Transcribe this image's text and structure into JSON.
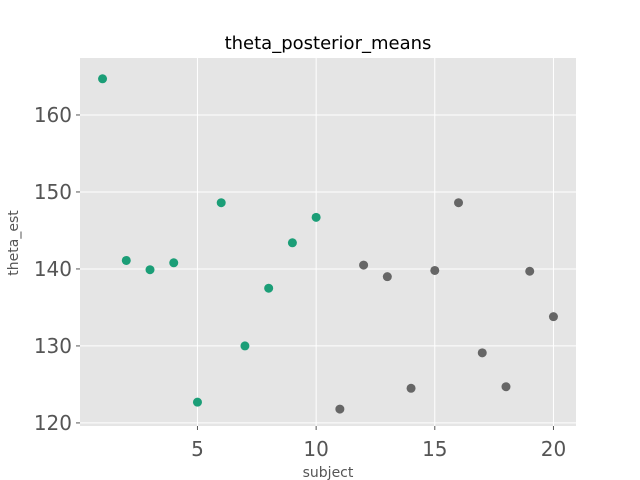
{
  "chart_data": {
    "type": "scatter",
    "title": "theta_posterior_means",
    "xlabel": "subject",
    "ylabel": "theta_est",
    "xlim": [
      0.05,
      20.95
    ],
    "ylim": [
      119.6,
      167.4
    ],
    "xticks": [
      5,
      10,
      15,
      20
    ],
    "yticks": [
      120,
      130,
      140,
      150,
      160
    ],
    "grid": true,
    "background_color": "#e5e5e5",
    "grid_color": "#ffffff",
    "series": [
      {
        "color": "#1b9e77",
        "x": [
          1,
          2,
          3,
          4,
          5,
          6,
          7,
          8,
          9,
          10
        ],
        "y": [
          164.7,
          141.1,
          139.9,
          140.8,
          122.7,
          148.6,
          130.0,
          137.5,
          143.4,
          146.7
        ]
      },
      {
        "color": "#666666",
        "x": [
          11,
          12,
          13,
          14,
          15,
          16,
          17,
          18,
          19,
          20
        ],
        "y": [
          121.8,
          140.5,
          139.0,
          124.5,
          139.8,
          148.6,
          129.1,
          124.7,
          139.7,
          133.8
        ]
      }
    ]
  }
}
